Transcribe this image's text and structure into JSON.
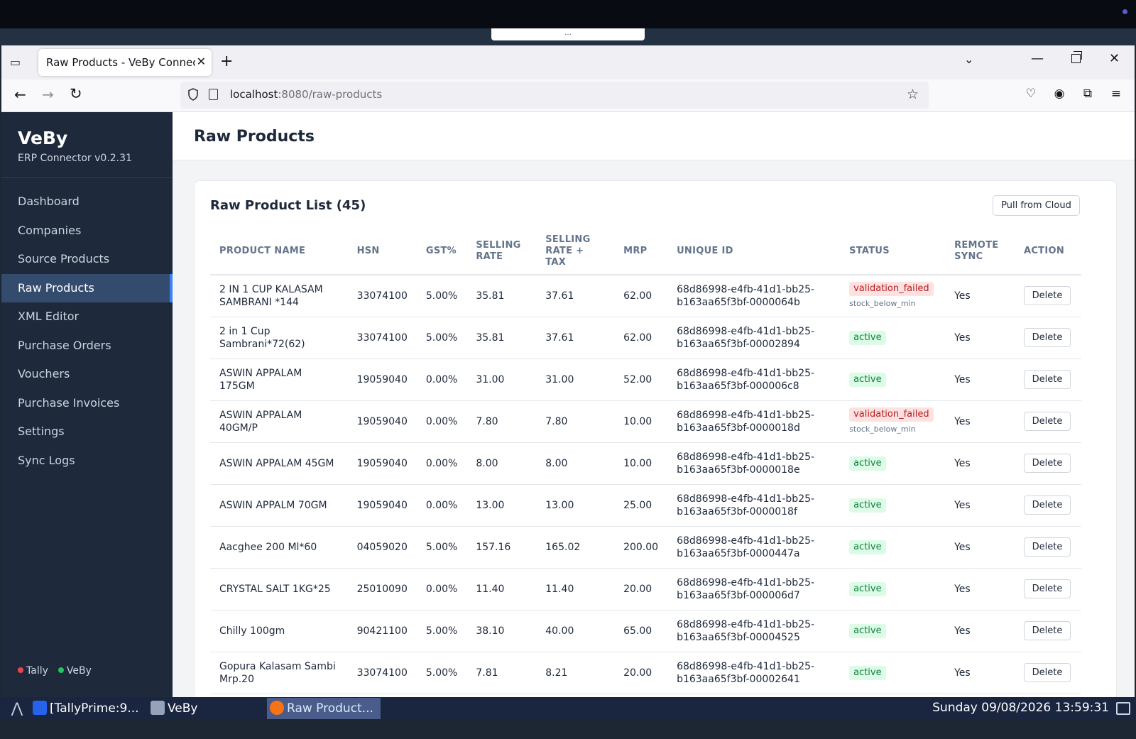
{
  "desktop": {
    "handle_text": "..."
  },
  "browser": {
    "tab_title": "Raw Products - VeBy Connector",
    "url_host": "localhost",
    "url_path": ":8080/raw-products"
  },
  "sidebar": {
    "brand": "VeBy",
    "version": "ERP Connector v0.2.31",
    "items": [
      {
        "label": "Dashboard"
      },
      {
        "label": "Companies"
      },
      {
        "label": "Source Products"
      },
      {
        "label": "Raw Products"
      },
      {
        "label": "XML Editor"
      },
      {
        "label": "Purchase Orders"
      },
      {
        "label": "Vouchers"
      },
      {
        "label": "Purchase Invoices"
      },
      {
        "label": "Settings"
      },
      {
        "label": "Sync Logs"
      }
    ],
    "status": [
      {
        "label": "Tally",
        "color": "#ef4444"
      },
      {
        "label": "VeBy",
        "color": "#22c55e"
      }
    ]
  },
  "main": {
    "title": "Raw Products",
    "list_title": "Raw Product List (45)",
    "pull_button": "Pull from Cloud",
    "columns": [
      "PRODUCT NAME",
      "HSN",
      "GST%",
      "SELLING RATE",
      "SELLING RATE + TAX",
      "MRP",
      "UNIQUE ID",
      "STATUS",
      "REMOTE SYNC",
      "ACTION"
    ],
    "rows": [
      {
        "name": "2 IN 1 CUP KALASAM SAMBRANI *144",
        "hsn": "33074100",
        "gst": "5.00%",
        "rate": "35.81",
        "rate_tax": "37.61",
        "mrp": "62.00",
        "uid": "68d86998-e4fb-41d1-bb25-b163aa65f3bf-0000064b",
        "status": "validation_failed",
        "status_note": "stock_below_min",
        "sync": "Yes",
        "action": "Delete"
      },
      {
        "name": "2 in 1 Cup Sambrani*72(62)",
        "hsn": "33074100",
        "gst": "5.00%",
        "rate": "35.81",
        "rate_tax": "37.61",
        "mrp": "62.00",
        "uid": "68d86998-e4fb-41d1-bb25-b163aa65f3bf-00002894",
        "status": "active",
        "status_note": "",
        "sync": "Yes",
        "action": "Delete"
      },
      {
        "name": "ASWIN APPALAM 175GM",
        "hsn": "19059040",
        "gst": "0.00%",
        "rate": "31.00",
        "rate_tax": "31.00",
        "mrp": "52.00",
        "uid": "68d86998-e4fb-41d1-bb25-b163aa65f3bf-000006c8",
        "status": "active",
        "status_note": "",
        "sync": "Yes",
        "action": "Delete"
      },
      {
        "name": "ASWIN APPALAM 40GM/P",
        "hsn": "19059040",
        "gst": "0.00%",
        "rate": "7.80",
        "rate_tax": "7.80",
        "mrp": "10.00",
        "uid": "68d86998-e4fb-41d1-bb25-b163aa65f3bf-0000018d",
        "status": "validation_failed",
        "status_note": "stock_below_min",
        "sync": "Yes",
        "action": "Delete"
      },
      {
        "name": "ASWIN APPALAM 45GM",
        "hsn": "19059040",
        "gst": "0.00%",
        "rate": "8.00",
        "rate_tax": "8.00",
        "mrp": "10.00",
        "uid": "68d86998-e4fb-41d1-bb25-b163aa65f3bf-0000018e",
        "status": "active",
        "status_note": "",
        "sync": "Yes",
        "action": "Delete"
      },
      {
        "name": "ASWIN APPALM 70GM",
        "hsn": "19059040",
        "gst": "0.00%",
        "rate": "13.00",
        "rate_tax": "13.00",
        "mrp": "25.00",
        "uid": "68d86998-e4fb-41d1-bb25-b163aa65f3bf-0000018f",
        "status": "active",
        "status_note": "",
        "sync": "Yes",
        "action": "Delete"
      },
      {
        "name": "Aacghee 200 Ml*60",
        "hsn": "04059020",
        "gst": "5.00%",
        "rate": "157.16",
        "rate_tax": "165.02",
        "mrp": "200.00",
        "uid": "68d86998-e4fb-41d1-bb25-b163aa65f3bf-0000447a",
        "status": "active",
        "status_note": "",
        "sync": "Yes",
        "action": "Delete"
      },
      {
        "name": "CRYSTAL SALT 1KG*25",
        "hsn": "25010090",
        "gst": "0.00%",
        "rate": "11.40",
        "rate_tax": "11.40",
        "mrp": "20.00",
        "uid": "68d86998-e4fb-41d1-bb25-b163aa65f3bf-000006d7",
        "status": "active",
        "status_note": "",
        "sync": "Yes",
        "action": "Delete"
      },
      {
        "name": "Chilly 100gm",
        "hsn": "90421100",
        "gst": "5.00%",
        "rate": "38.10",
        "rate_tax": "40.00",
        "mrp": "65.00",
        "uid": "68d86998-e4fb-41d1-bb25-b163aa65f3bf-00004525",
        "status": "active",
        "status_note": "",
        "sync": "Yes",
        "action": "Delete"
      },
      {
        "name": "Gopura Kalasam Sambi Mrp.20",
        "hsn": "33074100",
        "gst": "5.00%",
        "rate": "7.81",
        "rate_tax": "8.21",
        "mrp": "20.00",
        "uid": "68d86998-e4fb-41d1-bb25-b163aa65f3bf-00002641",
        "status": "active",
        "status_note": "",
        "sync": "Yes",
        "action": "Delete"
      }
    ]
  },
  "taskbar": {
    "tasks": [
      {
        "label": "[TallyPrime:9..."
      },
      {
        "label": "VeBy"
      },
      {
        "label": "Raw Product..."
      }
    ],
    "clock": "Sunday 09/08/2026 13:59:31"
  }
}
